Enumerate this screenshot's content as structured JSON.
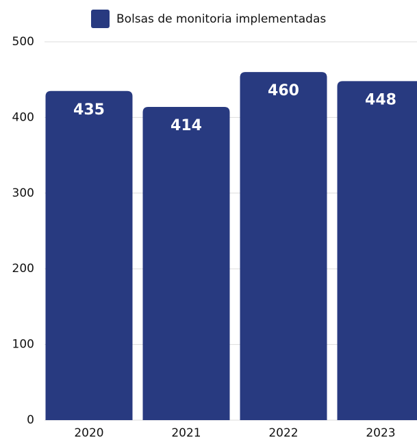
{
  "chart_data": {
    "type": "bar",
    "series": [
      {
        "name": "Bolsas de monitoria implementadas",
        "color": "#283a80",
        "values": [
          435,
          414,
          460,
          448
        ]
      }
    ],
    "categories": [
      "2020",
      "2021",
      "2022",
      "2023"
    ],
    "ylim": [
      0,
      500
    ],
    "yticks": [
      0,
      100,
      200,
      300,
      400,
      500
    ],
    "grid": true,
    "legend": "top"
  }
}
